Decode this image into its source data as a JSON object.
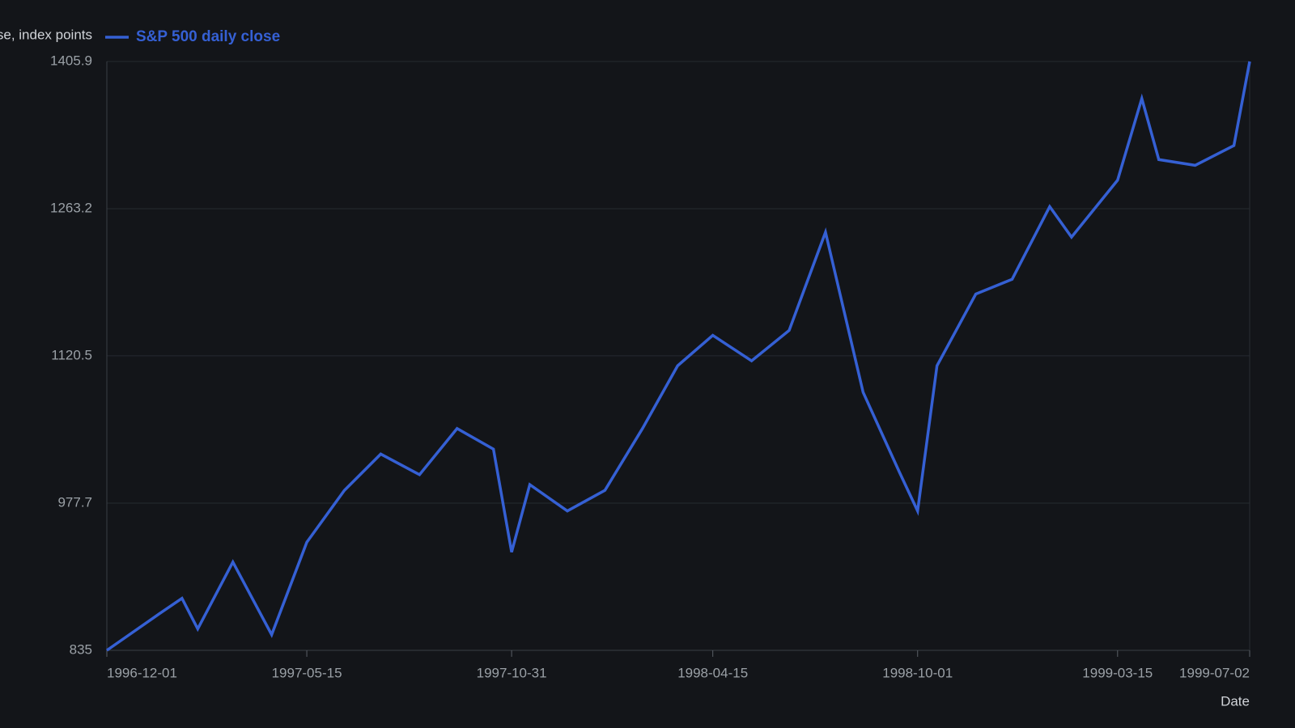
{
  "chart_data": {
    "type": "line",
    "y_label": "Close, index points",
    "x_label": "Date",
    "x": [
      "1996-12-01",
      "1997-01-13",
      "1997-02-01",
      "1997-02-14",
      "1997-03-15",
      "1997-04-16",
      "1997-05-15",
      "1997-06-15",
      "1997-07-15",
      "1997-08-16",
      "1997-09-16",
      "1997-10-16",
      "1997-10-31",
      "1997-11-15",
      "1997-12-16",
      "1998-01-16",
      "1998-02-16",
      "1998-03-17",
      "1998-04-15",
      "1998-05-17",
      "1998-06-17",
      "1998-07-17",
      "1998-08-17",
      "1998-09-16",
      "1998-10-01",
      "1998-10-17",
      "1998-11-18",
      "1998-12-18",
      "1999-01-18",
      "1999-02-05",
      "1999-03-15",
      "1999-04-04",
      "1999-04-18",
      "1999-05-18",
      "1999-06-19",
      "1999-07-02"
    ],
    "series": [
      {
        "name": "S&P 500 daily close",
        "color": "#3560d4",
        "values": [
          835,
          870.2,
          885.4,
          855.8,
          920.6,
          850.2,
          939.8,
          990.1,
          1025.3,
          1005.3,
          1050.1,
          1030.1,
          930.2,
          995.7,
          970.1,
          990.1,
          1050.1,
          1110.9,
          1140.4,
          1115.7,
          1145.2,
          1240.4,
          1085.3,
          1007.7,
          970.1,
          1110.9,
          1180.4,
          1194.8,
          1265.2,
          1235.6,
          1290.8,
          1370.0,
          1310.8,
          1305.2,
          1324.4,
          1405.9
        ]
      }
    ],
    "xlim": [
      "1996-12-01",
      "1999-07-02"
    ],
    "xticks": [
      "1996-12-01",
      "1997-05-15",
      "1997-10-31",
      "1998-04-15",
      "1998-10-01",
      "1999-03-15",
      "1999-07-02"
    ],
    "ylim": [
      835,
      1405.9
    ],
    "yticks": [
      835,
      977.7,
      1120.5,
      1263.2,
      1405.9
    ],
    "grid": true
  }
}
